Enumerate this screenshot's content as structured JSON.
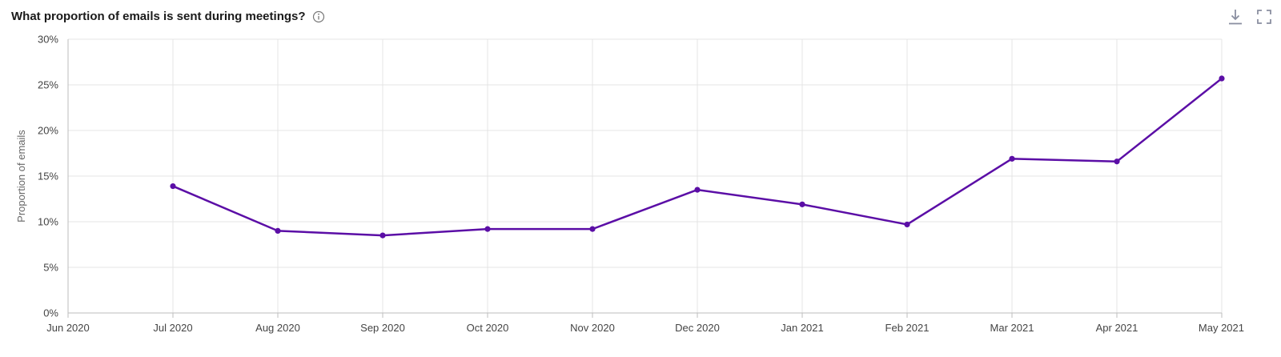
{
  "header": {
    "title": "What proportion of emails is sent during meetings?",
    "info_icon": "info-circle-icon"
  },
  "toolbar": {
    "download_icon": "download-icon",
    "fullscreen_icon": "fullscreen-icon"
  },
  "colors": {
    "series": "#5b0ea6",
    "grid": "#e4e4e4",
    "axis": "#bdbdbd",
    "icon": "#8a8fa0"
  },
  "chart_data": {
    "type": "line",
    "title": "What proportion of emails is sent during meetings?",
    "xlabel": "",
    "ylabel": "Proportion of emails",
    "x": [
      "Jun 2020",
      "Jul 2020",
      "Aug 2020",
      "Sep 2020",
      "Oct 2020",
      "Nov 2020",
      "Dec 2020",
      "Jan 2021",
      "Feb 2021",
      "Mar 2021",
      "Apr 2021",
      "May 2021"
    ],
    "y_ticks": [
      "0%",
      "5%",
      "10%",
      "15%",
      "20%",
      "25%",
      "30%"
    ],
    "ylim": [
      0,
      30
    ],
    "grid": true,
    "series": [
      {
        "values": [
          null,
          13.9,
          9.0,
          8.5,
          9.2,
          9.2,
          13.5,
          11.9,
          9.7,
          16.9,
          16.6,
          25.7
        ]
      }
    ]
  }
}
